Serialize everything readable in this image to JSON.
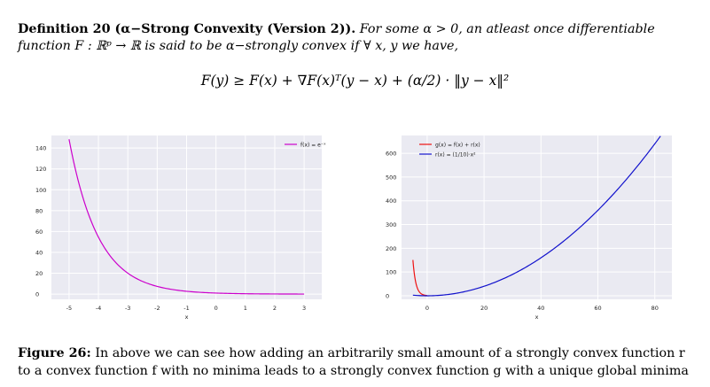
{
  "definition": {
    "heading": "Definition 20 (α−Strong Convexity (Version 2)).",
    "body": "For some α > 0, an atleast once differentiable function F : ℝᵖ → ℝ is said to be α−strongly convex if ∀ x, y we have,"
  },
  "equation": "F(y) ≥ F(x) + ∇F(x)ᵀ(y − x) + (α/2) · ‖y − x‖²",
  "chart_data": [
    {
      "type": "line",
      "title": "",
      "xlabel": "x",
      "ylabel": "",
      "xlim": [
        -5.6,
        3.6
      ],
      "ylim": [
        -5,
        152
      ],
      "xticks": [
        "-5",
        "-4",
        "-3",
        "-2",
        "-1",
        "0",
        "1",
        "2",
        "3"
      ],
      "yticks": [
        "0",
        "20",
        "40",
        "60",
        "80",
        "100",
        "120",
        "140"
      ],
      "grid": true,
      "legend": "top-right",
      "series": [
        {
          "name": "f(x) = e⁻ˣ",
          "color": "#cc00cc",
          "function": "exp(-x)",
          "x_range": [
            -5,
            3
          ]
        }
      ]
    },
    {
      "type": "line",
      "title": "",
      "xlabel": "x",
      "ylabel": "",
      "xlim": [
        -9,
        86
      ],
      "ylim": [
        -15,
        675
      ],
      "xticks": [
        "0",
        "20",
        "40",
        "60",
        "80"
      ],
      "yticks": [
        "0",
        "100",
        "200",
        "300",
        "400",
        "500",
        "600"
      ],
      "grid": true,
      "legend": "top-left",
      "series": [
        {
          "name": "g(x) = f(x) + r(x)",
          "color": "#ee1111",
          "function": "exp(-x) + 0.1*x^2",
          "x_range": [
            -5,
            0
          ]
        },
        {
          "name": "r(x) = (1/10)·x²",
          "color": "#1111cc",
          "function": "0.1*x^2",
          "x_range": [
            -5,
            82
          ]
        }
      ]
    }
  ],
  "caption": {
    "label": "Figure 26:",
    "text": "In above we can see how adding an arbitrarily small amount of a strongly convex function r to a convex function f with no minima leads to a strongly convex function g with a unique global minima"
  },
  "colors": {
    "plot_bg": "#eaeaf2",
    "grid": "#ffffff"
  }
}
